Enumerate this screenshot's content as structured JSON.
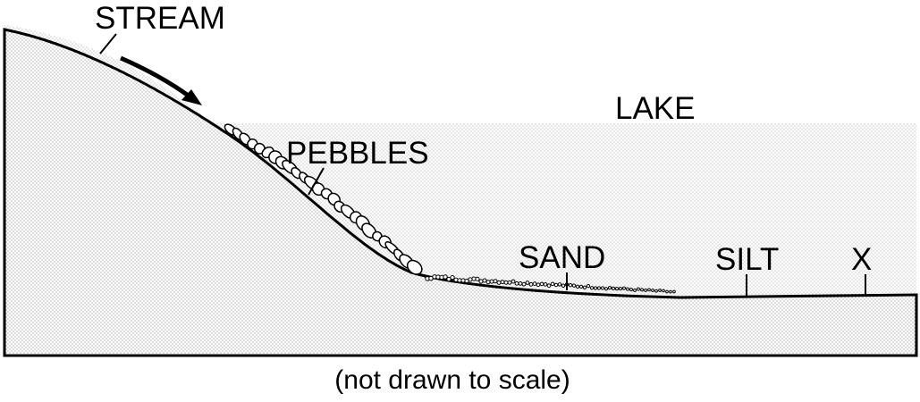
{
  "labels": {
    "stream": "STREAM",
    "lake": "LAKE",
    "pebbles": "PEBBLES",
    "sand": "SAND",
    "silt": "SILT",
    "x": "X"
  },
  "caption": "(not drawn to scale)"
}
